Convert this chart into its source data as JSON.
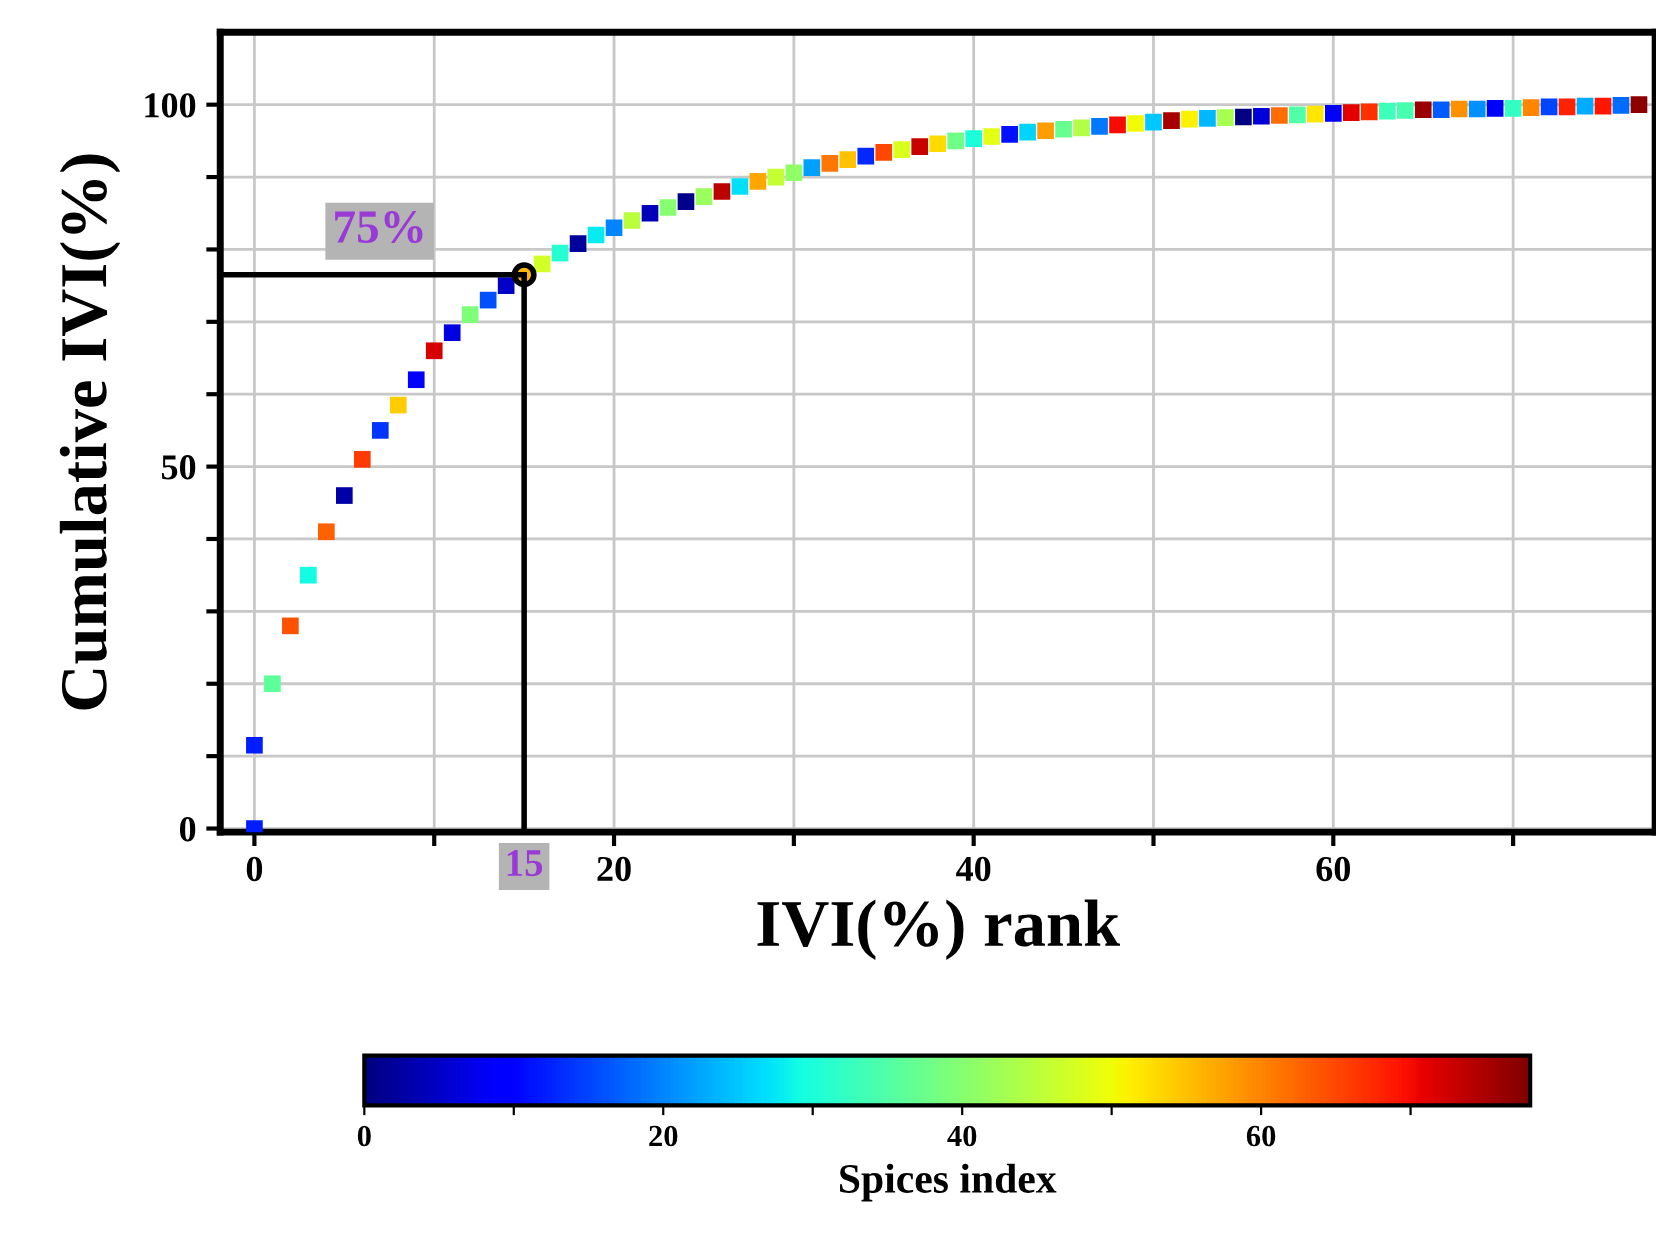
{
  "chart_data": {
    "type": "scatter",
    "marker": "square",
    "xlabel": "IVI(%) rank",
    "ylabel": "Cumulative IVI(%)",
    "clabel": "Spices index",
    "series": [
      {
        "x": [
          0,
          0,
          1,
          2,
          3,
          4,
          5,
          6,
          7,
          8,
          9,
          10,
          11,
          12,
          13,
          14,
          15,
          16,
          17,
          18,
          19,
          20,
          21,
          22,
          23,
          24,
          25,
          26,
          27,
          28,
          29,
          30,
          31,
          32,
          33,
          34,
          35,
          36,
          37,
          38,
          39,
          40,
          41,
          42,
          43,
          44,
          45,
          46,
          47,
          48,
          49,
          50,
          51,
          52,
          53,
          54,
          55,
          56,
          57,
          58,
          59,
          60,
          61,
          62,
          63,
          64,
          65,
          66,
          67,
          68,
          69,
          70,
          71,
          72,
          73,
          74,
          75,
          76,
          77
        ],
        "values": [
          0,
          11.5,
          20,
          28,
          35,
          41,
          46,
          51,
          55,
          58.5,
          62,
          66,
          68.5,
          71,
          73,
          75,
          76.5,
          78,
          79.5,
          80.8,
          82,
          83,
          84,
          85,
          85.8,
          86.6,
          87.3,
          88,
          88.7,
          89.4,
          90,
          90.6,
          91.3,
          91.9,
          92.4,
          92.9,
          93.4,
          93.8,
          94.2,
          94.6,
          95,
          95.3,
          95.6,
          95.9,
          96.2,
          96.4,
          96.6,
          96.8,
          97,
          97.2,
          97.4,
          97.6,
          97.8,
          98,
          98.1,
          98.2,
          98.3,
          98.4,
          98.5,
          98.6,
          98.7,
          98.8,
          98.9,
          99,
          99.1,
          99.2,
          99.3,
          99.3,
          99.4,
          99.4,
          99.5,
          99.5,
          99.6,
          99.7,
          99.7,
          99.8,
          99.8,
          99.9,
          100
        ],
        "cvalues": [
          12,
          12,
          36,
          64,
          29,
          63,
          3,
          66,
          14,
          54,
          10,
          72,
          7,
          39,
          16,
          5,
          56,
          47,
          31,
          2,
          28,
          20,
          45,
          4,
          40,
          1,
          42,
          74,
          27,
          57,
          46,
          41,
          22,
          61,
          55,
          13,
          65,
          48,
          73,
          53,
          38,
          30,
          49,
          11,
          26,
          58,
          37,
          44,
          19,
          70,
          50,
          25,
          75,
          51,
          24,
          43,
          0,
          6,
          62,
          35,
          52,
          8,
          71,
          67,
          33,
          34,
          76,
          17,
          59,
          21,
          9,
          32,
          60,
          15,
          68,
          23,
          69,
          18,
          77
        ]
      }
    ],
    "xlim": [
      -1.9,
      77.9
    ],
    "ylim": [
      -0.5,
      110
    ],
    "xticks": [
      0,
      {
        "value": 10,
        "label": null
      },
      20,
      {
        "value": 30,
        "label": null
      },
      40,
      {
        "value": 50,
        "label": null
      },
      60,
      {
        "value": 70,
        "label": null
      }
    ],
    "yticks": [
      0,
      {
        "value": 10,
        "label": null
      },
      {
        "value": 20,
        "label": null
      },
      {
        "value": 30,
        "label": null
      },
      {
        "value": 40,
        "label": null
      },
      50,
      {
        "value": 60,
        "label": null
      },
      {
        "value": 70,
        "label": null
      },
      {
        "value": 80,
        "label": null
      },
      {
        "value": 90,
        "label": null
      },
      100
    ],
    "clim": [
      0,
      78
    ],
    "cticks": [
      0,
      {
        "value": 10,
        "label": null
      },
      20,
      {
        "value": 30,
        "label": null
      },
      40,
      {
        "value": 50,
        "label": null
      },
      60,
      {
        "value": 70,
        "label": null
      }
    ],
    "grid": true,
    "annotations": [
      "75%"
    ],
    "ref_lines": [
      {
        "axis": "y",
        "value": 76.5
      },
      {
        "axis": "x",
        "value": 15,
        "label": "15"
      }
    ]
  }
}
